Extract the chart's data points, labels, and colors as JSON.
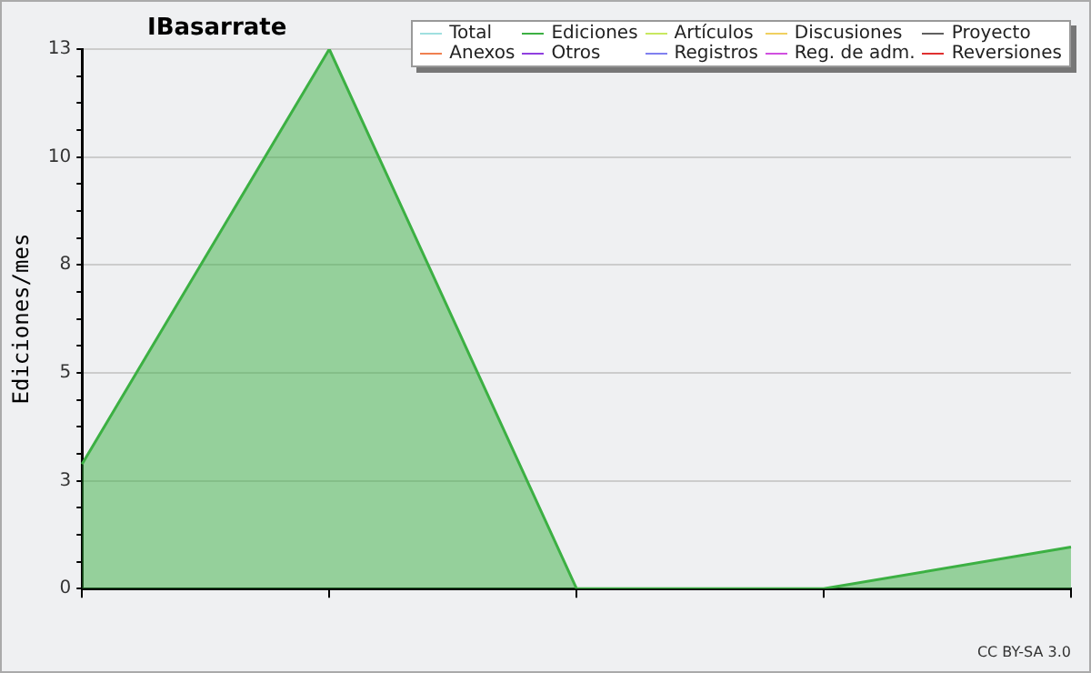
{
  "chart_data": {
    "type": "area",
    "title": "IBasarrate",
    "ylabel": "Ediciones/mes",
    "categories": [
      null,
      null,
      null,
      null,
      null
    ],
    "series": [
      {
        "name": "Total",
        "color": "#a0e0e0",
        "values": [
          null,
          null,
          null,
          null,
          null
        ]
      },
      {
        "name": "Ediciones",
        "color": "#3cb043",
        "values": [
          3.0,
          13,
          0,
          0,
          1.0
        ]
      },
      {
        "name": "Artículos",
        "color": "#c8e860",
        "values": [
          null,
          null,
          null,
          null,
          null
        ]
      },
      {
        "name": "Discusiones",
        "color": "#f0d060",
        "values": [
          null,
          null,
          null,
          null,
          null
        ]
      },
      {
        "name": "Proyecto",
        "color": "#606060",
        "values": [
          null,
          null,
          null,
          null,
          null
        ]
      },
      {
        "name": "Anexos",
        "color": "#f08050",
        "values": [
          null,
          null,
          null,
          null,
          null
        ]
      },
      {
        "name": "Otros",
        "color": "#9040e0",
        "values": [
          null,
          null,
          null,
          null,
          null
        ]
      },
      {
        "name": "Registros",
        "color": "#8080f0",
        "values": [
          null,
          null,
          null,
          null,
          null
        ]
      },
      {
        "name": "Reg. de adm.",
        "color": "#d050e0",
        "values": [
          null,
          null,
          null,
          null,
          null
        ]
      },
      {
        "name": "Reversiones",
        "color": "#e03030",
        "values": [
          null,
          null,
          null,
          null,
          null
        ]
      }
    ],
    "ylim": [
      0,
      13
    ],
    "yticks": [
      {
        "value": 0,
        "label": "0"
      },
      {
        "value": 0.65,
        "label": null
      },
      {
        "value": 1.3,
        "label": null
      },
      {
        "value": 1.95,
        "label": null
      },
      {
        "value": 2.6,
        "label": "3"
      },
      {
        "value": 3.25,
        "label": null
      },
      {
        "value": 3.9,
        "label": null
      },
      {
        "value": 4.55,
        "label": null
      },
      {
        "value": 5.2,
        "label": "5"
      },
      {
        "value": 5.85,
        "label": null
      },
      {
        "value": 6.5,
        "label": null
      },
      {
        "value": 7.15,
        "label": null
      },
      {
        "value": 7.8,
        "label": "8"
      },
      {
        "value": 8.45,
        "label": null
      },
      {
        "value": 9.1,
        "label": null
      },
      {
        "value": 9.75,
        "label": null
      },
      {
        "value": 10.4,
        "label": "10"
      },
      {
        "value": 11.05,
        "label": null
      },
      {
        "value": 11.7,
        "label": null
      },
      {
        "value": 12.35,
        "label": null
      },
      {
        "value": 13,
        "label": "13"
      }
    ],
    "grid": "y",
    "legend": "top right",
    "annotations": [
      "CC BY-SA 3.0"
    ]
  }
}
